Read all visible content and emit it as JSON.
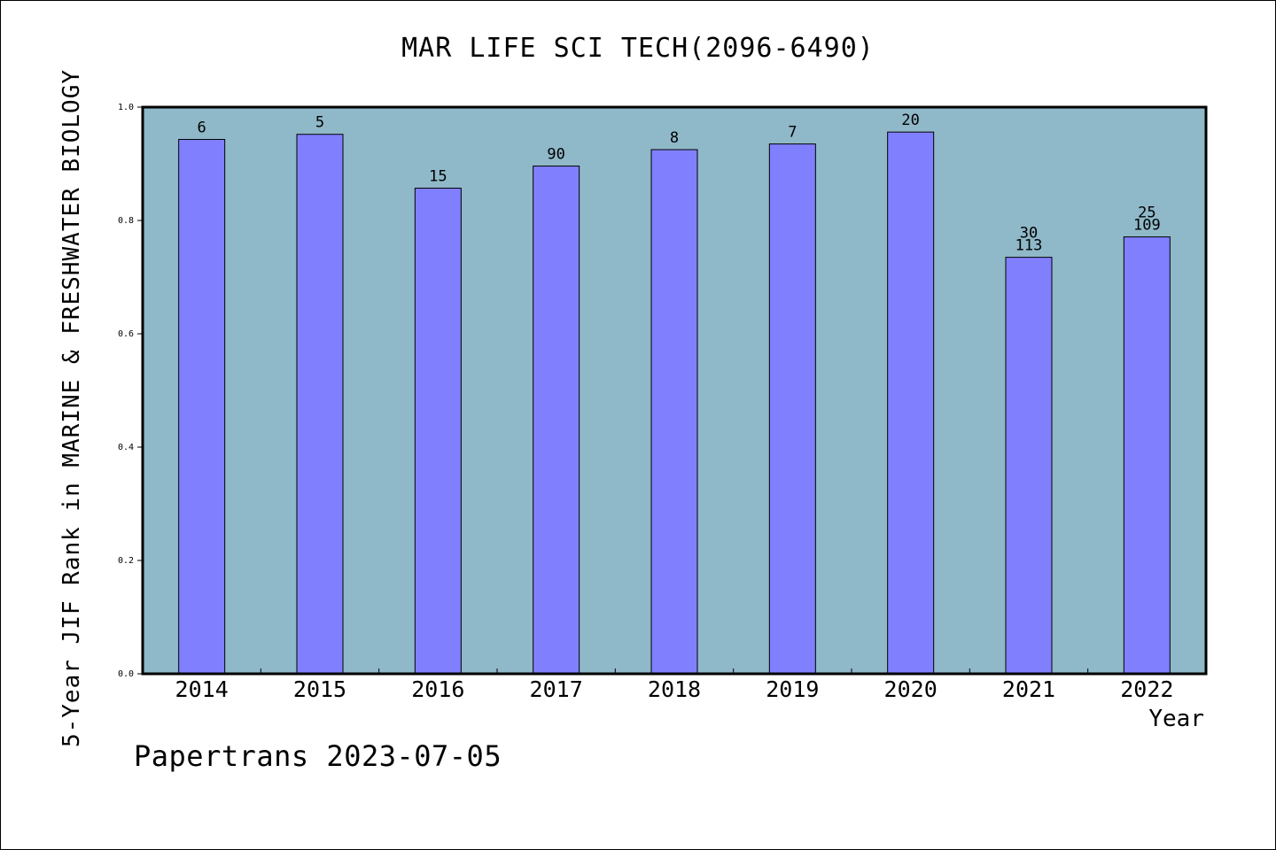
{
  "chart_data": {
    "type": "bar",
    "title": "MAR LIFE SCI TECH(2096-6490)",
    "xlabel": "Year",
    "ylabel": "5-Year JIF Rank in MARINE & FRESHWATER BIOLOGY",
    "categories": [
      "2014",
      "2015",
      "2016",
      "2017",
      "2018",
      "2019",
      "2020",
      "2021",
      "2022"
    ],
    "values": [
      0.943,
      0.952,
      0.857,
      0.896,
      0.925,
      0.935,
      0.956,
      0.735,
      0.771
    ],
    "annotations": [
      [
        "6"
      ],
      [
        "5"
      ],
      [
        "15"
      ],
      [
        "90"
      ],
      [
        "8"
      ],
      [
        "7"
      ],
      [
        "20"
      ],
      [
        "30",
        "113"
      ],
      [
        "25",
        "109"
      ]
    ],
    "ylim": [
      0,
      1.0
    ],
    "yticks": [
      "0.0",
      "0.2",
      "0.4",
      "0.6",
      "0.8",
      "1.0"
    ],
    "grid": false,
    "colors": {
      "bar": "#8080ff",
      "plot_background": "#8fb8c8"
    }
  },
  "footer": "Papertrans 2023-07-05"
}
